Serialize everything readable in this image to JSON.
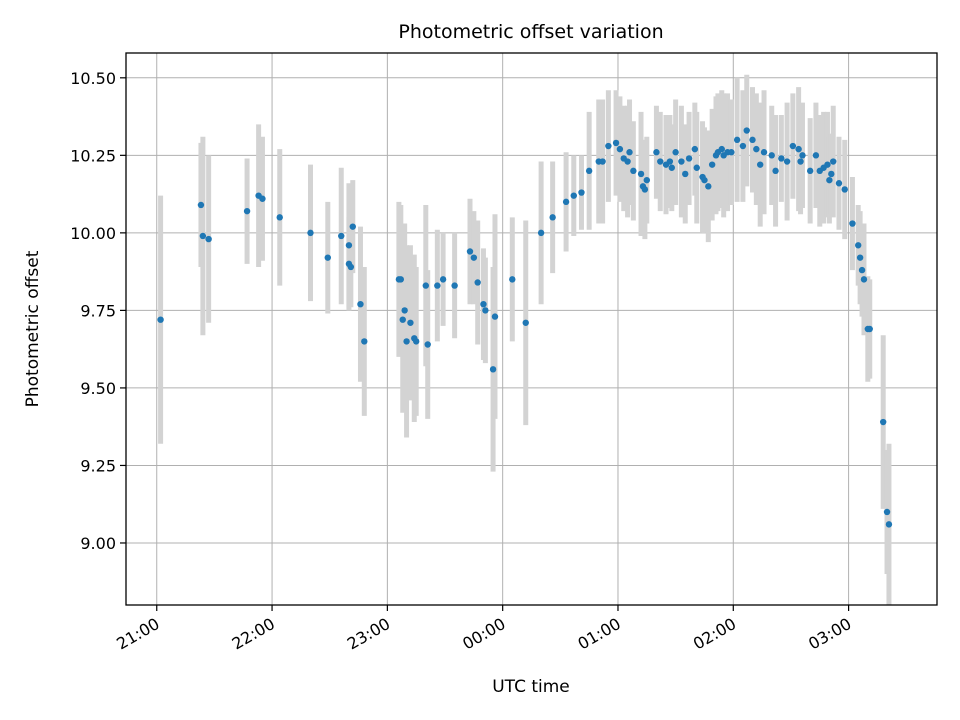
{
  "colors": {
    "point": "#1f77b4",
    "errorbar": "#d3d3d3",
    "grid": "#b0b0b0",
    "axes": "#000000",
    "background": "#ffffff"
  },
  "chart_data": {
    "type": "scatter",
    "title": "Photometric offset variation",
    "xlabel": "UTC time",
    "ylabel": "Photometric offset",
    "grid": true,
    "x_axis_kind": "time",
    "x_ticks": [
      "21:00",
      "22:00",
      "23:00",
      "00:00",
      "01:00",
      "02:00",
      "03:00"
    ],
    "y_ticks": [
      "9.00",
      "9.25",
      "9.50",
      "9.75",
      "10.00",
      "10.25",
      "10.50"
    ],
    "xlim": [
      "20:44",
      "03:46"
    ],
    "ylim": [
      8.8,
      10.58
    ],
    "series": [
      {
        "x": [
          "21:02",
          "21:23",
          "21:24",
          "21:27",
          "21:47",
          "21:53",
          "21:55",
          "22:04",
          "22:20",
          "22:29",
          "22:36",
          "22:40",
          "22:40",
          "22:41",
          "22:42",
          "22:46",
          "22:48",
          "23:06",
          "23:07",
          "23:08",
          "23:09",
          "23:10",
          "23:12",
          "23:14",
          "23:15",
          "23:20",
          "23:21",
          "23:26",
          "23:29",
          "23:35",
          "23:43",
          "23:45",
          "23:47",
          "23:50",
          "23:51",
          "23:55",
          "23:56",
          "00:05",
          "00:12",
          "00:20",
          "00:26",
          "00:33",
          "00:37",
          "00:41",
          "00:45",
          "00:50",
          "00:52",
          "00:55",
          "00:59",
          "01:01",
          "01:03",
          "01:05",
          "01:06",
          "01:08",
          "01:12",
          "01:13",
          "01:14",
          "01:15",
          "01:20",
          "01:22",
          "01:25",
          "01:27",
          "01:28",
          "01:30",
          "01:33",
          "01:35",
          "01:37",
          "01:40",
          "01:41",
          "01:44",
          "01:45",
          "01:47",
          "01:49",
          "01:51",
          "01:52",
          "01:54",
          "01:55",
          "01:57",
          "01:59",
          "02:02",
          "02:05",
          "02:07",
          "02:10",
          "02:12",
          "02:14",
          "02:16",
          "02:20",
          "02:22",
          "02:25",
          "02:28",
          "02:31",
          "02:34",
          "02:35",
          "02:36",
          "02:40",
          "02:43",
          "02:45",
          "02:47",
          "02:49",
          "02:50",
          "02:51",
          "02:52",
          "02:55",
          "02:58",
          "03:02",
          "03:05",
          "03:06",
          "03:07",
          "03:08",
          "03:10",
          "03:11",
          "03:18",
          "03:20",
          "03:21"
        ],
        "y": [
          9.72,
          10.09,
          9.99,
          9.98,
          10.07,
          10.12,
          10.11,
          10.05,
          10.0,
          9.92,
          9.99,
          9.96,
          9.9,
          9.89,
          10.02,
          9.77,
          9.65,
          9.85,
          9.85,
          9.72,
          9.75,
          9.65,
          9.71,
          9.66,
          9.65,
          9.83,
          9.64,
          9.83,
          9.85,
          9.83,
          9.94,
          9.92,
          9.84,
          9.77,
          9.75,
          9.56,
          9.73,
          9.85,
          9.71,
          10.0,
          10.05,
          10.1,
          10.12,
          10.13,
          10.2,
          10.23,
          10.23,
          10.28,
          10.29,
          10.27,
          10.24,
          10.23,
          10.26,
          10.2,
          10.19,
          10.15,
          10.14,
          10.17,
          10.26,
          10.23,
          10.22,
          10.23,
          10.21,
          10.26,
          10.23,
          10.19,
          10.24,
          10.27,
          10.21,
          10.18,
          10.17,
          10.15,
          10.22,
          10.25,
          10.26,
          10.27,
          10.25,
          10.26,
          10.26,
          10.3,
          10.28,
          10.33,
          10.3,
          10.27,
          10.22,
          10.26,
          10.25,
          10.2,
          10.24,
          10.23,
          10.28,
          10.27,
          10.23,
          10.25,
          10.2,
          10.25,
          10.2,
          10.21,
          10.22,
          10.17,
          10.19,
          10.23,
          10.16,
          10.14,
          10.03,
          9.96,
          9.92,
          9.88,
          9.85,
          9.69,
          9.69,
          9.39,
          9.1,
          9.06
        ],
        "err": [
          0.4,
          0.2,
          0.32,
          0.27,
          0.17,
          0.23,
          0.2,
          0.22,
          0.22,
          0.18,
          0.22,
          0.2,
          0.15,
          0.13,
          0.15,
          0.25,
          0.24,
          0.25,
          0.24,
          0.3,
          0.28,
          0.31,
          0.25,
          0.27,
          0.24,
          0.26,
          0.24,
          0.18,
          0.15,
          0.17,
          0.17,
          0.15,
          0.2,
          0.18,
          0.17,
          0.33,
          0.33,
          0.2,
          0.33,
          0.23,
          0.18,
          0.16,
          0.13,
          0.12,
          0.19,
          0.2,
          0.2,
          0.18,
          0.17,
          0.17,
          0.17,
          0.18,
          0.17,
          0.16,
          0.2,
          0.15,
          0.16,
          0.14,
          0.15,
          0.16,
          0.16,
          0.15,
          0.14,
          0.17,
          0.18,
          0.16,
          0.15,
          0.15,
          0.18,
          0.18,
          0.17,
          0.18,
          0.18,
          0.19,
          0.19,
          0.19,
          0.2,
          0.19,
          0.17,
          0.2,
          0.18,
          0.18,
          0.17,
          0.18,
          0.2,
          0.2,
          0.16,
          0.18,
          0.14,
          0.19,
          0.17,
          0.2,
          0.17,
          0.17,
          0.17,
          0.17,
          0.18,
          0.18,
          0.17,
          0.14,
          0.13,
          0.18,
          0.15,
          0.16,
          0.15,
          0.13,
          0.15,
          0.15,
          0.18,
          0.17,
          0.16,
          0.28,
          0.2,
          0.26
        ]
      }
    ]
  }
}
